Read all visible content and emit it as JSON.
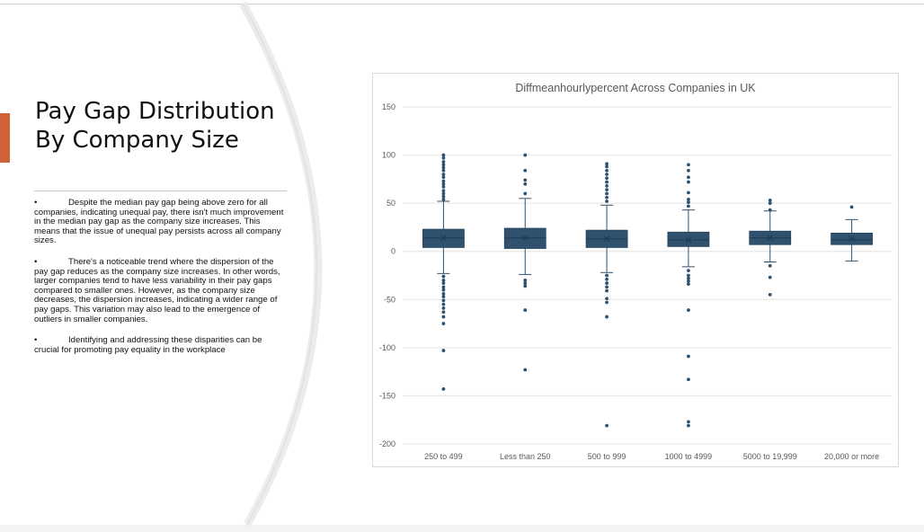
{
  "slide": {
    "title": "Pay Gap Distribution By Company Size",
    "bullets": [
      "Despite the median pay gap being above zero for all companies, indicating unequal pay, there isn't much improvement in the median pay gap as the company size increases. This means that the issue of unequal pay persists across all company sizes.",
      "There's a noticeable trend where the dispersion of the pay gap reduces as the company size increases. In other words, larger companies tend to have less variability in their pay gaps compared to smaller ones. However, as the company size decreases, the dispersion increases, indicating a wider range of pay gaps. This variation may also lead to the emergence of outliers in smaller companies.",
      "Identifying and addressing these disparities can be crucial for promoting pay equality in the workplace"
    ],
    "bullet_marker": "•"
  },
  "colors": {
    "accent": "#d0623a",
    "box_fill": "#30526f",
    "whisker": "#30526f",
    "grid": "#e4e4e4",
    "text": "#595959"
  },
  "chart_data": {
    "type": "box",
    "title": "Diffmeanhourlypercent Across Companies in UK",
    "xlabel": "",
    "ylabel": "",
    "ylim": [
      -200,
      150
    ],
    "yticks": [
      150,
      100,
      50,
      0,
      -50,
      -100,
      -150,
      -200
    ],
    "grid": true,
    "categories": [
      "250 to 499",
      "Less than 250",
      "500 to 999",
      "1000 to 4999",
      "5000 to 19,999",
      "20,000 or more"
    ],
    "boxes": [
      {
        "category": "250 to 499",
        "whisker_low": -23,
        "q1": 4,
        "median": 14,
        "mean": 14,
        "q3": 23,
        "whisker_high": 52,
        "outliers": [
          100,
          97,
          93,
          90,
          87,
          84,
          80,
          77,
          73,
          70,
          67,
          63,
          60,
          57,
          54,
          -26,
          -30,
          -33,
          -37,
          -40,
          -44,
          -47,
          -51,
          -55,
          -59,
          -63,
          -68,
          -75,
          -103,
          -143
        ]
      },
      {
        "category": "Less than 250",
        "whisker_low": -24,
        "q1": 3,
        "median": 14,
        "mean": 14,
        "q3": 24,
        "whisker_high": 55,
        "outliers": [
          100,
          84,
          74,
          70,
          60,
          -30,
          -33,
          -36,
          -61,
          -123
        ]
      },
      {
        "category": "500 to 999",
        "whisker_low": -22,
        "q1": 4,
        "median": 13,
        "mean": 13,
        "q3": 22,
        "whisker_high": 48,
        "outliers": [
          91,
          88,
          84,
          80,
          76,
          72,
          68,
          64,
          60,
          56,
          52,
          -25,
          -29,
          -33,
          -37,
          -41,
          -49,
          -53,
          -68,
          -181
        ]
      },
      {
        "category": "1000 to 4999",
        "whisker_low": -16,
        "q1": 5,
        "median": 12,
        "mean": 12,
        "q3": 20,
        "whisker_high": 43,
        "outliers": [
          90,
          84,
          77,
          72,
          61,
          54,
          51,
          47,
          -20,
          -25,
          -28,
          -31,
          -34,
          -61,
          -109,
          -133,
          -177,
          -181
        ]
      },
      {
        "category": "5000 to 19,999",
        "whisker_low": -11,
        "q1": 7,
        "median": 14,
        "mean": 14,
        "q3": 21,
        "whisker_high": 42,
        "outliers": [
          53,
          50,
          43,
          -15,
          -27,
          -45
        ]
      },
      {
        "category": "20,000 or more",
        "whisker_low": -10,
        "q1": 7,
        "median": 12,
        "mean": 13,
        "q3": 19,
        "whisker_high": 33,
        "outliers": [
          46
        ]
      }
    ]
  }
}
